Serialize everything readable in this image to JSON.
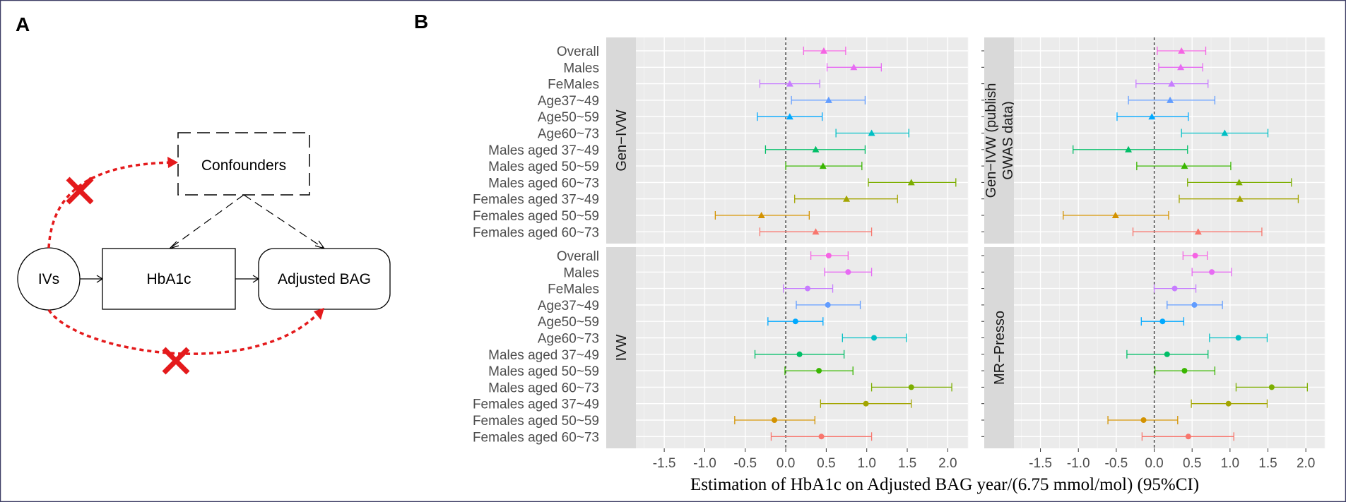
{
  "panels": {
    "a_label": "A",
    "b_label": "B"
  },
  "diagram": {
    "ivs_label": "IVs",
    "hba1c_label": "HbA1c",
    "outcome_label": "Adjusted BAG",
    "confounders_label": "Confounders",
    "red_color": "#e41a1c"
  },
  "chart_data": {
    "type": "forest",
    "xlabel": "Estimation of HbA1c on Adjusted BAG year/(6.75 mmol/mol) (95%CI)",
    "xlim": [
      -1.85,
      2.25
    ],
    "xticks": [
      -1.5,
      -1.0,
      -0.5,
      0.0,
      0.5,
      1.0,
      1.5,
      2.0
    ],
    "xtick_labels": [
      "-1.5",
      "-1.0",
      "-0.5",
      "0.0",
      "0.5",
      "1.0",
      "1.5",
      "2.0"
    ],
    "reference_line": 0,
    "categories": [
      "Overall",
      "Males",
      "FeMales",
      "Age37~49",
      "Age50~59",
      "Age60~73",
      "Males aged 37~49",
      "Males aged 50~59",
      "Males aged 60~73",
      "Females aged 37~49",
      "Females aged 50~59",
      "Females aged 60~73"
    ],
    "colors": [
      "#f564e3",
      "#e76bf3",
      "#c77cff",
      "#619cff",
      "#00a9ff",
      "#00bfc4",
      "#00be67",
      "#39b600",
      "#7cae00",
      "#a3a500",
      "#d39200",
      "#f8766d"
    ],
    "facets": [
      {
        "label": "Gen−IVW",
        "marker": "triangle",
        "estimates": [
          0.47,
          0.84,
          0.05,
          0.53,
          0.05,
          1.06,
          0.37,
          0.46,
          1.55,
          0.75,
          -0.3,
          0.37
        ],
        "lower": [
          0.22,
          0.51,
          -0.32,
          0.07,
          -0.35,
          0.62,
          -0.25,
          0.0,
          1.02,
          0.11,
          -0.87,
          -0.32
        ],
        "upper": [
          0.74,
          1.18,
          0.42,
          0.98,
          0.45,
          1.52,
          0.98,
          0.94,
          2.1,
          1.38,
          0.29,
          1.06
        ]
      },
      {
        "label": "Gen−IVW (publish GWAS data)",
        "label_lines": [
          "Gen−IVW (publish",
          "GWAS data)"
        ],
        "marker": "triangle",
        "estimates": [
          0.36,
          0.35,
          0.23,
          0.21,
          -0.03,
          0.93,
          -0.34,
          0.4,
          1.12,
          1.13,
          -0.51,
          0.58
        ],
        "lower": [
          0.04,
          0.06,
          -0.24,
          -0.34,
          -0.49,
          0.36,
          -1.07,
          -0.23,
          0.44,
          0.33,
          -1.2,
          -0.28
        ],
        "upper": [
          0.68,
          0.64,
          0.71,
          0.8,
          0.45,
          1.5,
          0.44,
          1.01,
          1.81,
          1.9,
          0.19,
          1.42
        ]
      },
      {
        "label": "IVW",
        "marker": "circle",
        "estimates": [
          0.53,
          0.77,
          0.27,
          0.52,
          0.12,
          1.09,
          0.17,
          0.41,
          1.55,
          0.99,
          -0.14,
          0.44
        ],
        "lower": [
          0.31,
          0.48,
          -0.03,
          0.13,
          -0.22,
          0.7,
          -0.38,
          -0.01,
          1.06,
          0.43,
          -0.63,
          -0.18
        ],
        "upper": [
          0.77,
          1.06,
          0.58,
          0.92,
          0.46,
          1.49,
          0.72,
          0.83,
          2.05,
          1.55,
          0.36,
          1.06
        ]
      },
      {
        "label": "MR−Presso",
        "marker": "circle",
        "estimates": [
          0.54,
          0.76,
          0.27,
          0.53,
          0.11,
          1.11,
          0.17,
          0.4,
          1.55,
          0.98,
          -0.14,
          0.45
        ],
        "lower": [
          0.38,
          0.5,
          0.0,
          0.17,
          -0.17,
          0.73,
          -0.36,
          0.01,
          1.08,
          0.49,
          -0.61,
          -0.16
        ],
        "upper": [
          0.7,
          1.02,
          0.55,
          0.9,
          0.39,
          1.49,
          0.71,
          0.8,
          2.02,
          1.49,
          0.31,
          1.05
        ]
      }
    ]
  }
}
